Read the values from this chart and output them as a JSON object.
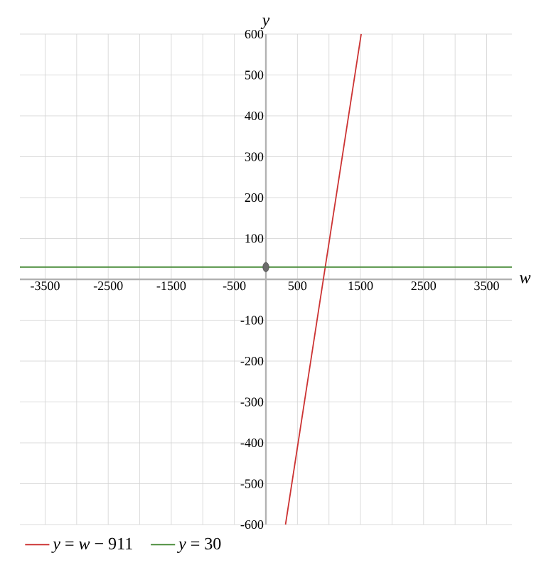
{
  "chart_data": {
    "type": "line",
    "xlabel": "w",
    "ylabel": "y",
    "xlim": [
      -3900,
      3900
    ],
    "ylim": [
      -600,
      600
    ],
    "xticks": [
      -3500,
      {
        "value": -3000,
        "label": null
      },
      -2500,
      {
        "value": -2000,
        "label": null
      },
      -1500,
      {
        "value": -1000,
        "label": null
      },
      -500,
      {
        "value": 0,
        "label": null
      },
      500,
      {
        "value": 1000,
        "label": null
      },
      1500,
      {
        "value": 2000,
        "label": null
      },
      2500,
      {
        "value": 3000,
        "label": null
      },
      3500
    ],
    "yticks": [
      -600,
      -500,
      -400,
      -300,
      -200,
      -100,
      {
        "value": 0,
        "label": null
      },
      100,
      200,
      300,
      400,
      500,
      600
    ],
    "grid": true,
    "legend": "bottom left",
    "series": [
      {
        "name": "*y* = *w* − 911",
        "color": "#cc3333",
        "x": [
          311,
          1511
        ],
        "values": [
          -600,
          600
        ]
      },
      {
        "name": "*y* = 30",
        "color": "#4a8c3a",
        "x": [
          -3900,
          3900
        ],
        "values": [
          30,
          30
        ]
      },
      {
        "type": "scatter",
        "color": "#6b6b6b",
        "x": [
          0
        ],
        "values": [
          30
        ],
        "marker": "circle"
      }
    ]
  }
}
